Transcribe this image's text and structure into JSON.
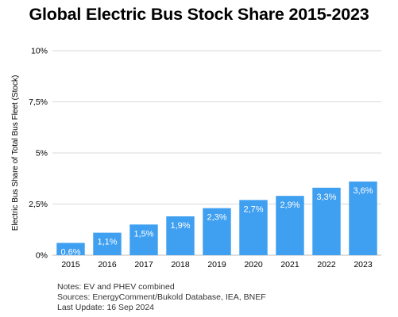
{
  "chart_data": {
    "type": "bar",
    "title": "Global Electric Bus Stock Share 2015-2023",
    "xlabel": "",
    "ylabel": "Electric Bus Share of Total Bus Fleet (Stock)",
    "categories": [
      "2015",
      "2016",
      "2017",
      "2018",
      "2019",
      "2020",
      "2021",
      "2022",
      "2023"
    ],
    "values": [
      0.6,
      1.1,
      1.5,
      1.9,
      2.3,
      2.7,
      2.9,
      3.3,
      3.6
    ],
    "value_labels": [
      "0,6%",
      "1,1%",
      "1,5%",
      "1,9%",
      "2,3%",
      "2,7%",
      "2,9%",
      "3,3%",
      "3,6%"
    ],
    "ylim": [
      0,
      10
    ],
    "yticks": [
      0,
      2.5,
      5,
      7.5,
      10
    ],
    "ytick_labels": [
      "0%",
      "2,5%",
      "5%",
      "7,5%",
      "10%"
    ],
    "grid": true,
    "bar_color": "#3f9ff0",
    "grid_color": "#d9d9d9"
  },
  "notes": [
    "Notes: EV and PHEV combined",
    "Sources: EnergyComment/Bukold Database, IEA, BNEF",
    "Last Update: 16 Sep 2024"
  ]
}
